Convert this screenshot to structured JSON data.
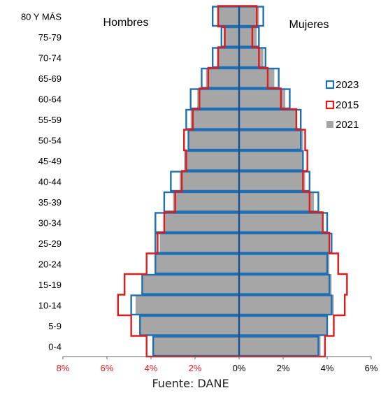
{
  "chart_data": {
    "type": "bar",
    "subtype": "population-pyramid",
    "left_title": "Hombres",
    "right_title": "Mujeres",
    "source": "Fuente: DANE",
    "categories": [
      "0-4",
      "5-9",
      "10-14",
      "15-19",
      "20-24",
      "25-29",
      "30-34",
      "35-39",
      "40-44",
      "45-49",
      "50-54",
      "55-59",
      "60-64",
      "65-69",
      "70-74",
      "75-79",
      "80 Y MÁS"
    ],
    "x_ticks": [
      "8%",
      "6%",
      "4%",
      "2%",
      "0%",
      "2%",
      "4%",
      "6%"
    ],
    "xlim": [
      -8,
      6
    ],
    "legend_position": "right",
    "legend": [
      {
        "label": "2023",
        "color": "#1f6fb5",
        "style": "outline"
      },
      {
        "label": "2015",
        "color": "#e01b1b",
        "style": "outline"
      },
      {
        "label": "2021",
        "color": "#a6a6a6",
        "style": "filled"
      }
    ],
    "series": [
      {
        "name": "2021",
        "hombres": [
          3.9,
          4.5,
          4.7,
          4.4,
          3.8,
          3.6,
          3.4,
          3.0,
          2.7,
          2.5,
          2.3,
          2.2,
          1.9,
          1.5,
          1.0,
          0.7,
          0.95
        ],
        "mujeres": [
          3.7,
          4.0,
          4.3,
          4.2,
          4.1,
          4.1,
          3.8,
          3.4,
          3.0,
          2.9,
          2.9,
          2.6,
          2.1,
          1.6,
          1.1,
          0.8,
          0.9
        ]
      },
      {
        "name": "2015",
        "hombres": [
          4.2,
          4.9,
          5.5,
          5.2,
          4.2,
          3.7,
          3.4,
          2.9,
          2.6,
          2.4,
          2.5,
          2.1,
          1.8,
          1.4,
          0.95,
          0.65,
          0.95
        ],
        "mujeres": [
          3.9,
          4.3,
          4.8,
          4.9,
          4.5,
          4.1,
          3.8,
          3.2,
          2.9,
          3.1,
          3.0,
          2.6,
          1.9,
          1.3,
          0.9,
          0.6,
          0.8
        ]
      },
      {
        "name": "2023",
        "hombres": [
          3.9,
          4.5,
          4.9,
          4.4,
          3.8,
          3.8,
          3.8,
          3.4,
          3.1,
          2.4,
          2.3,
          2.4,
          2.2,
          1.7,
          1.2,
          0.8,
          1.2
        ],
        "mujeres": [
          3.6,
          4.0,
          4.2,
          4.1,
          4.0,
          4.2,
          4.0,
          3.6,
          3.2,
          2.9,
          2.8,
          2.8,
          2.3,
          1.8,
          1.2,
          0.9,
          1.1
        ]
      }
    ]
  }
}
